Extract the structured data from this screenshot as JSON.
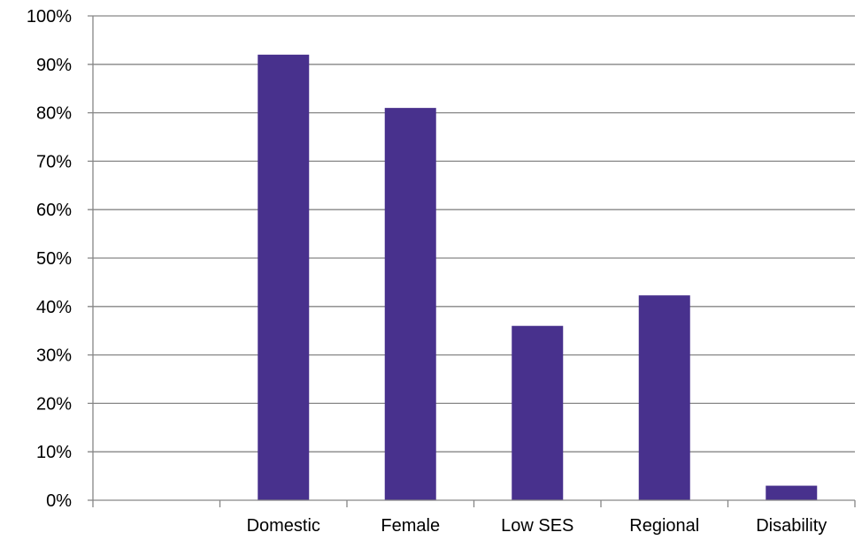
{
  "chart_data": {
    "type": "bar",
    "categories": [
      "",
      "Domestic",
      "Female",
      "Low SES",
      "Regional",
      "Disability"
    ],
    "values": [
      null,
      92,
      81,
      36,
      42.3,
      3
    ],
    "yticks": [
      "0%",
      "10%",
      "20%",
      "30%",
      "40%",
      "50%",
      "60%",
      "70%",
      "80%",
      "90%",
      "100%"
    ],
    "ylim": [
      0,
      100
    ],
    "title": "",
    "xlabel": "",
    "ylabel": "",
    "grid": true,
    "legend": "none",
    "colors": {
      "bar": "#48318D",
      "grid": "#868686"
    }
  }
}
